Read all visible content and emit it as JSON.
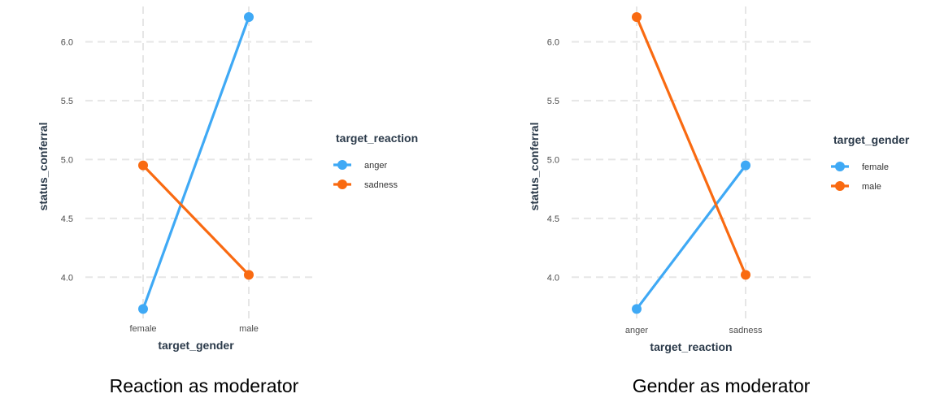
{
  "chart_data": [
    {
      "type": "line",
      "caption": "Reaction as moderator",
      "xlabel": "target_gender",
      "ylabel": "status_conferral",
      "categories": [
        "female",
        "male"
      ],
      "ylim": [
        3.65,
        6.3
      ],
      "yticks": [
        "4.0",
        "4.5",
        "5.0",
        "5.5",
        "6.0"
      ],
      "legend_title": "target_reaction",
      "legend_position": "right",
      "grid": true,
      "series": [
        {
          "name": "anger",
          "color": "#3fa9f5",
          "values": [
            3.73,
            6.21
          ]
        },
        {
          "name": "sadness",
          "color": "#f96a11",
          "values": [
            4.95,
            4.02
          ]
        }
      ]
    },
    {
      "type": "line",
      "caption": "Gender as moderator",
      "xlabel": "target_reaction",
      "ylabel": "status_conferral",
      "categories": [
        "anger",
        "sadness"
      ],
      "ylim": [
        3.65,
        6.3
      ],
      "yticks": [
        "4.0",
        "4.5",
        "5.0",
        "5.5",
        "6.0"
      ],
      "legend_title": "target_gender",
      "legend_position": "right",
      "grid": true,
      "series": [
        {
          "name": "female",
          "color": "#3fa9f5",
          "values": [
            3.73,
            4.95
          ]
        },
        {
          "name": "male",
          "color": "#f96a11",
          "values": [
            6.21,
            4.02
          ]
        }
      ]
    }
  ]
}
